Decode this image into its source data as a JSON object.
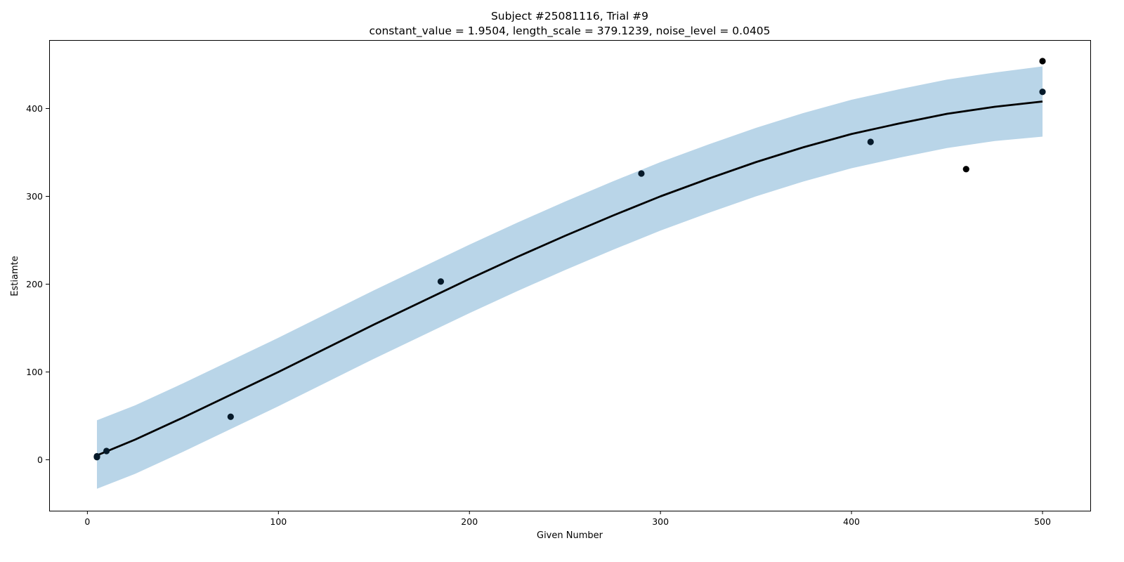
{
  "chart_data": {
    "type": "scatter",
    "title_line1": "Subject #25081116, Trial #9",
    "title_line2": "constant_value = 1.9504,  length_scale = 379.1239,  noise_level = 0.0405",
    "xlabel": "Given Number",
    "ylabel": "Estiamte",
    "xlim": [
      -20,
      525
    ],
    "ylim": [
      -58,
      478
    ],
    "xticks": [
      0,
      100,
      200,
      300,
      400,
      500
    ],
    "yticks": [
      0,
      100,
      200,
      300,
      400
    ],
    "grid": false,
    "colors": {
      "points": "#000000",
      "points_in_band": "#061a2a",
      "mean_line": "#000000",
      "band": "#b9d5e8"
    },
    "points": [
      {
        "x": 5,
        "y": 3
      },
      {
        "x": 5,
        "y": 4
      },
      {
        "x": 10,
        "y": 10
      },
      {
        "x": 75,
        "y": 49
      },
      {
        "x": 185,
        "y": 203
      },
      {
        "x": 290,
        "y": 326
      },
      {
        "x": 410,
        "y": 362
      },
      {
        "x": 460,
        "y": 331
      },
      {
        "x": 500,
        "y": 419
      },
      {
        "x": 500,
        "y": 454
      }
    ],
    "mean_curve": {
      "x": [
        5,
        25,
        50,
        75,
        100,
        125,
        150,
        175,
        200,
        225,
        250,
        275,
        300,
        325,
        350,
        375,
        400,
        425,
        450,
        475,
        500
      ],
      "y": [
        5,
        23,
        48,
        74,
        100,
        127,
        154,
        180,
        206,
        231,
        255,
        278,
        300,
        320,
        339,
        356,
        371,
        383,
        394,
        402,
        408
      ]
    },
    "band": {
      "x": [
        5,
        25,
        50,
        75,
        100,
        125,
        150,
        175,
        200,
        225,
        250,
        275,
        300,
        325,
        350,
        375,
        400,
        425,
        450,
        475,
        500
      ],
      "upper": [
        45,
        62,
        87,
        113,
        139,
        166,
        193,
        219,
        245,
        270,
        294,
        317,
        339,
        359,
        378,
        395,
        410,
        422,
        433,
        441,
        448
      ],
      "lower": [
        -33,
        -16,
        9,
        35,
        61,
        88,
        115,
        141,
        167,
        192,
        216,
        239,
        261,
        281,
        300,
        317,
        332,
        344,
        355,
        363,
        368
      ]
    }
  }
}
